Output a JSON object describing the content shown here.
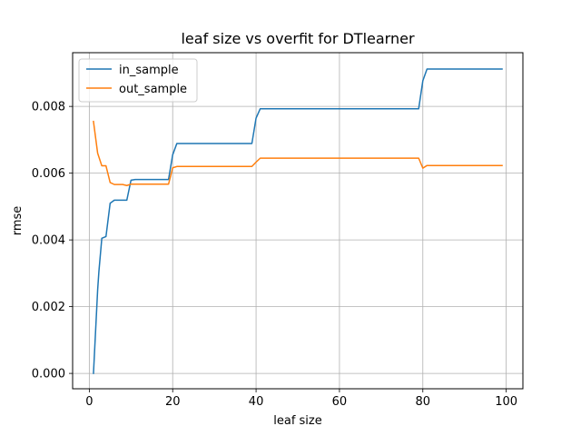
{
  "chart_data": {
    "type": "line",
    "title": "leaf size vs overfit for DTlearner",
    "xlabel": "leaf size",
    "ylabel": "rmse",
    "xlim": [
      -4,
      104
    ],
    "ylim": [
      -0.00046,
      0.00961
    ],
    "xticks": [
      0,
      20,
      40,
      60,
      80,
      100
    ],
    "yticks": [
      0.0,
      0.002,
      0.004,
      0.006,
      0.008
    ],
    "xtick_labels": [
      "0",
      "20",
      "40",
      "60",
      "80",
      "100"
    ],
    "ytick_labels": [
      "0.000",
      "0.002",
      "0.004",
      "0.006",
      "0.008"
    ],
    "grid": true,
    "legend_position": "top-left",
    "series": [
      {
        "name": "in_sample",
        "color": "#1f77b4",
        "points": [
          [
            1,
            0.0
          ],
          [
            2,
            0.0025
          ],
          [
            2.3,
            0.00305
          ],
          [
            3,
            0.00405
          ],
          [
            4,
            0.0041
          ],
          [
            5,
            0.0051
          ],
          [
            6,
            0.00519
          ],
          [
            7,
            0.00519
          ],
          [
            8,
            0.00519
          ],
          [
            9,
            0.00519
          ],
          [
            10,
            0.00579
          ],
          [
            11,
            0.00581
          ],
          [
            19,
            0.00581
          ],
          [
            20,
            0.00655
          ],
          [
            21,
            0.00689
          ],
          [
            39,
            0.00689
          ],
          [
            40,
            0.00765
          ],
          [
            41,
            0.00793
          ],
          [
            79,
            0.00793
          ],
          [
            80,
            0.00877
          ],
          [
            81,
            0.00912
          ],
          [
            99,
            0.00912
          ]
        ]
      },
      {
        "name": "out_sample",
        "color": "#ff7f0e",
        "points": [
          [
            1,
            0.00755
          ],
          [
            2,
            0.0066
          ],
          [
            3,
            0.00622
          ],
          [
            4,
            0.00622
          ],
          [
            5,
            0.00572
          ],
          [
            6,
            0.00566
          ],
          [
            8,
            0.00566
          ],
          [
            9,
            0.00563
          ],
          [
            10,
            0.00567
          ],
          [
            19,
            0.00567
          ],
          [
            20,
            0.00616
          ],
          [
            21,
            0.0062
          ],
          [
            39,
            0.0062
          ],
          [
            40,
            0.00633
          ],
          [
            41,
            0.00645
          ],
          [
            79,
            0.00645
          ],
          [
            80,
            0.00615
          ],
          [
            81,
            0.00623
          ],
          [
            99,
            0.00623
          ]
        ]
      }
    ]
  }
}
